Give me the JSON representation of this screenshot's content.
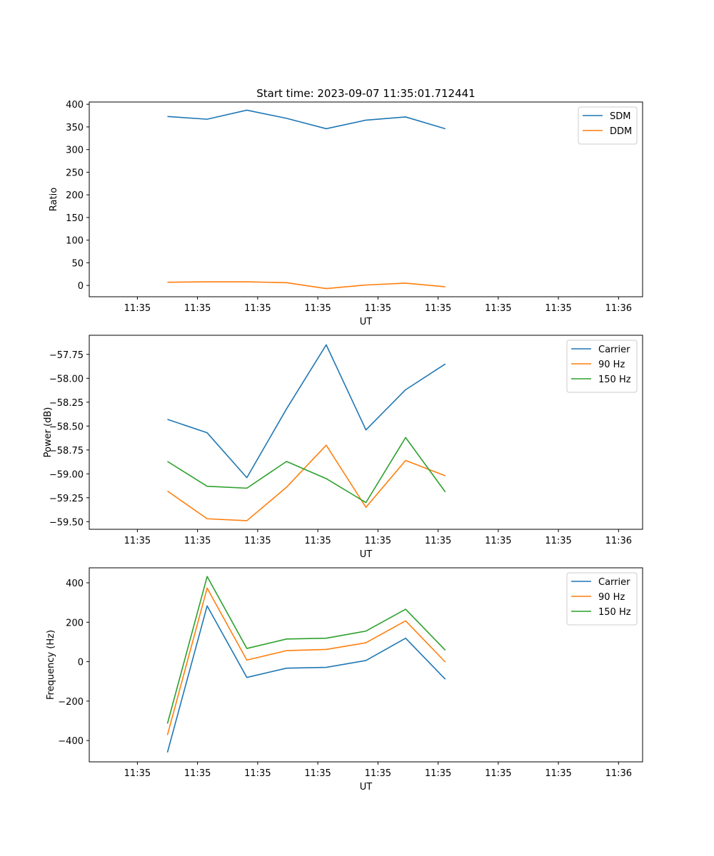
{
  "figure": {
    "title": "Start time: 2023-09-07 11:35:01.712441"
  },
  "colors": {
    "blue": "#1f77b4",
    "orange": "#ff7f0e",
    "green": "#2ca02c"
  },
  "chart_data": [
    {
      "type": "line",
      "name": "ratio",
      "title": "Start time: 2023-09-07 11:35:01.712441",
      "xlabel": "UT",
      "ylabel": "Ratio",
      "xlim": [
        -0.4,
        4.2
      ],
      "ylim": [
        -25,
        405
      ],
      "xticks": [
        0,
        0.5,
        1,
        1.5,
        2,
        2.5,
        3,
        3.5,
        4
      ],
      "xtick_labels": [
        "11:35",
        "11:35",
        "11:35",
        "11:35",
        "11:35",
        "11:35",
        "11:35",
        "11:35",
        "11:36"
      ],
      "yticks": [
        0,
        50,
        100,
        150,
        200,
        250,
        300,
        350,
        400
      ],
      "ytick_labels": [
        "0",
        "50",
        "100",
        "150",
        "200",
        "250",
        "300",
        "350",
        "400"
      ],
      "legend_position": "top-right",
      "x": [
        0.25,
        0.58,
        0.91,
        1.24,
        1.57,
        1.9,
        2.23,
        2.56
      ],
      "series": [
        {
          "name": "SDM",
          "color": "blue",
          "values": [
            373,
            367,
            387,
            369,
            346,
            365,
            372,
            346
          ]
        },
        {
          "name": "DDM",
          "color": "orange",
          "values": [
            7,
            8,
            8,
            6,
            -7,
            1,
            5,
            -3
          ]
        }
      ]
    },
    {
      "type": "line",
      "name": "power",
      "title": "",
      "xlabel": "UT",
      "ylabel": "Power (dB)",
      "xlim": [
        -0.4,
        4.2
      ],
      "ylim": [
        -59.58,
        -57.55
      ],
      "xticks": [
        0,
        0.5,
        1,
        1.5,
        2,
        2.5,
        3,
        3.5,
        4
      ],
      "xtick_labels": [
        "11:35",
        "11:35",
        "11:35",
        "11:35",
        "11:35",
        "11:35",
        "11:35",
        "11:35",
        "11:36"
      ],
      "yticks": [
        -59.5,
        -59.25,
        -59.0,
        -58.75,
        -58.5,
        -58.25,
        -58.0,
        -57.75
      ],
      "ytick_labels": [
        "−59.50",
        "−59.25",
        "−59.00",
        "−58.75",
        "−58.50",
        "−58.25",
        "−58.00",
        "−57.75"
      ],
      "legend_position": "top-right",
      "x": [
        0.25,
        0.58,
        0.91,
        1.24,
        1.57,
        1.9,
        2.23,
        2.56
      ],
      "series": [
        {
          "name": "Carrier",
          "color": "blue",
          "values": [
            -58.43,
            -58.57,
            -59.04,
            -58.32,
            -57.65,
            -58.54,
            -58.12,
            -57.85
          ]
        },
        {
          "name": "90 Hz",
          "color": "orange",
          "values": [
            -59.18,
            -59.47,
            -59.49,
            -59.14,
            -58.7,
            -59.35,
            -58.86,
            -59.02
          ]
        },
        {
          "name": "150 Hz",
          "color": "green",
          "values": [
            -58.87,
            -59.13,
            -59.15,
            -58.87,
            -59.05,
            -59.3,
            -58.62,
            -59.19
          ]
        }
      ]
    },
    {
      "type": "line",
      "name": "frequency",
      "title": "",
      "xlabel": "UT",
      "ylabel": "Frequency (Hz)",
      "xlim": [
        -0.4,
        4.2
      ],
      "ylim": [
        -508,
        476
      ],
      "xticks": [
        0,
        0.5,
        1,
        1.5,
        2,
        2.5,
        3,
        3.5,
        4
      ],
      "xtick_labels": [
        "11:35",
        "11:35",
        "11:35",
        "11:35",
        "11:35",
        "11:35",
        "11:35",
        "11:35",
        "11:36"
      ],
      "yticks": [
        -400,
        -200,
        0,
        200,
        400
      ],
      "ytick_labels": [
        "−400",
        "−200",
        "0",
        "200",
        "400"
      ],
      "legend_position": "top-right",
      "x": [
        0.25,
        0.58,
        0.91,
        1.24,
        1.57,
        1.9,
        2.23,
        2.56
      ],
      "series": [
        {
          "name": "Carrier",
          "color": "blue",
          "values": [
            -460,
            283,
            -80,
            -33,
            -29,
            6,
            119,
            -89
          ]
        },
        {
          "name": "90 Hz",
          "color": "orange",
          "values": [
            -372,
            373,
            8,
            56,
            62,
            96,
            207,
            -2
          ]
        },
        {
          "name": "150 Hz",
          "color": "green",
          "values": [
            -314,
            432,
            67,
            115,
            119,
            155,
            266,
            58
          ]
        }
      ]
    }
  ]
}
